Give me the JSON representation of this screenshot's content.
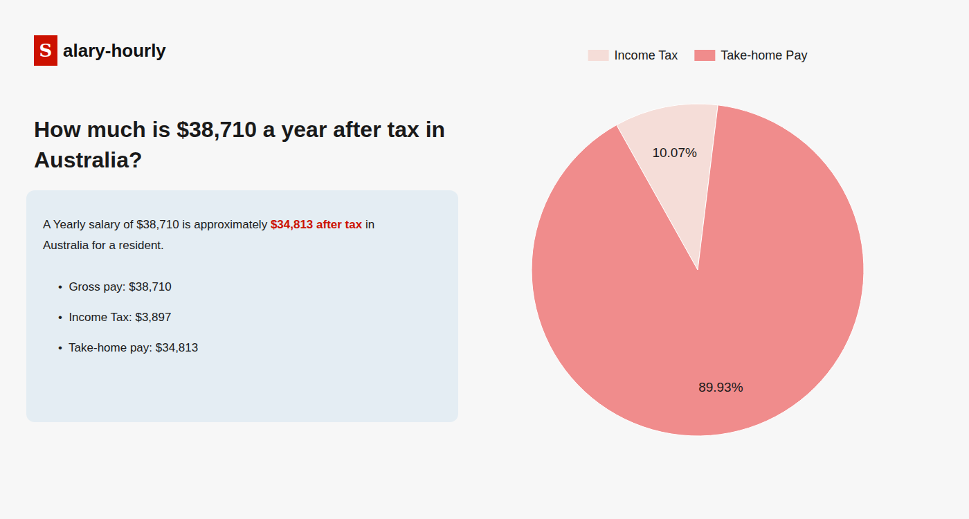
{
  "chart_data": {
    "type": "pie",
    "title": "How much is $38,710 a year after tax in\nAustralia?",
    "categories": [
      "Income Tax",
      "Take-home Pay"
    ],
    "values": [
      10.07,
      89.93
    ],
    "value_labels": [
      "10.07%",
      "89.93%"
    ],
    "data_labels": true,
    "colors": [
      "#f5ddd8",
      "#f08c8c"
    ],
    "legend": "top",
    "annotations": [
      {
        "text": "S",
        "color": "#ffffff"
      },
      {
        "text": "alary-hourly",
        "color": "#111111"
      },
      {
        "text": "A Yearly salary of $38,710 is approximately ",
        "color": "#1a1a1a"
      },
      {
        "text": "$34,813 after tax",
        "color": "#cc1100"
      },
      {
        "text": " in",
        "color": "#1a1a1a"
      },
      {
        "text": "Australia for a resident.",
        "color": "#1a1a1a"
      },
      {
        "text": "•  Gross pay: $38,710",
        "color": "#1a1a1a"
      },
      {
        "text": "•  Income Tax: $3,897",
        "color": "#1a1a1a"
      },
      {
        "text": "•  Take-home pay: $34,813",
        "color": "#1a1a1a"
      }
    ]
  }
}
